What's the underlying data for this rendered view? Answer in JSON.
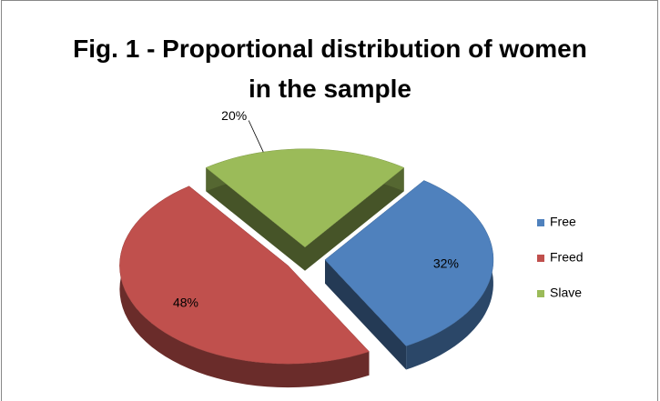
{
  "chart_data": {
    "type": "pie",
    "title": "Fig. 1 - Proportional distribution of women in the sample",
    "categories": [
      "Free",
      "Freed",
      "Slave"
    ],
    "values": [
      32,
      48,
      20
    ],
    "value_labels": [
      "32%",
      "48%",
      "20%"
    ],
    "colors": [
      "#4f81bd",
      "#c0504d",
      "#9bbb59"
    ],
    "legend": "right"
  }
}
